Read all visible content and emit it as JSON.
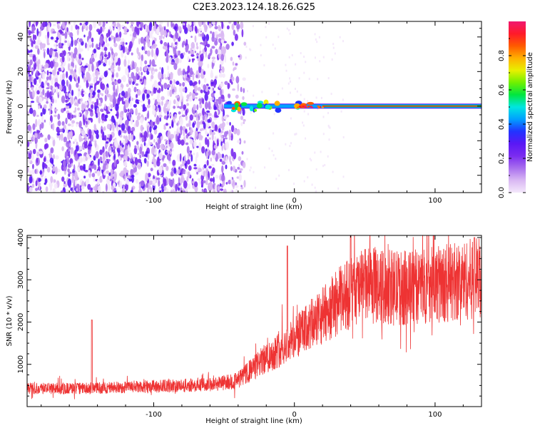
{
  "title": "C2E3.2023.124.18.26.G25",
  "chart_data": [
    {
      "type": "heatmap",
      "xlabel": "Height of straight line (km)",
      "ylabel": "Frequency (Hz)",
      "xlim": [
        -190,
        133
      ],
      "ylim": [
        -50,
        49
      ],
      "xticks": [
        -100,
        0,
        100
      ],
      "yticks": [
        -40,
        -20,
        0,
        20,
        40
      ],
      "xtick_labels": [
        "-100",
        "0",
        "100"
      ],
      "ytick_labels": [
        "-40",
        "-20",
        "0",
        "20",
        "40"
      ],
      "colorbar": {
        "label": "Normalized spectral amplitude",
        "range": [
          0.0,
          1.0
        ],
        "ticks": [
          0.0,
          0.2,
          0.4,
          0.6,
          0.8
        ],
        "tick_labels": [
          "0.0",
          "0.2",
          "0.4",
          "0.6",
          "0.8"
        ],
        "colors": [
          "#f4e8fb",
          "#d9b8f3",
          "#a970ee",
          "#7b2cf0",
          "#5a18f5",
          "#2233ff",
          "#00a0ff",
          "#00e6e0",
          "#00e640",
          "#70f000",
          "#e8f000",
          "#ffb000",
          "#ff5a00",
          "#ff1a2a",
          "#f01870"
        ]
      },
      "regions": [
        {
          "name": "noise",
          "x_range": [
            -190,
            -35
          ],
          "y_range": [
            -50,
            49
          ],
          "amplitude": [
            0.02,
            0.3
          ]
        },
        {
          "name": "signal",
          "x_range": [
            -50,
            133
          ],
          "frequency_hz": 0,
          "amplitude": [
            0.5,
            1.0
          ]
        }
      ]
    },
    {
      "type": "line",
      "xlabel": "Height of straight line (km)",
      "ylabel": "SNR (10 * v/v)",
      "xlim": [
        -190,
        133
      ],
      "ylim": [
        0,
        4050
      ],
      "xticks": [
        -100,
        0,
        100
      ],
      "yticks": [
        1000,
        2000,
        3000,
        4000
      ],
      "xtick_labels": [
        "-100",
        "0",
        "100"
      ],
      "ytick_labels": [
        "1000",
        "2000",
        "3000",
        "4000"
      ],
      "color": "#ee3333",
      "trend": [
        {
          "x": -190,
          "y": 430
        },
        {
          "x": -150,
          "y": 430
        },
        {
          "x": -100,
          "y": 480
        },
        {
          "x": -60,
          "y": 520
        },
        {
          "x": -40,
          "y": 620
        },
        {
          "x": -20,
          "y": 1150
        },
        {
          "x": 0,
          "y": 1600
        },
        {
          "x": 20,
          "y": 2150
        },
        {
          "x": 35,
          "y": 2600
        },
        {
          "x": 50,
          "y": 2850
        },
        {
          "x": 80,
          "y": 2800
        },
        {
          "x": 133,
          "y": 3050
        }
      ],
      "spikes": [
        {
          "x": -144,
          "y": 2050
        },
        {
          "x": -5,
          "y": 3800
        },
        {
          "x": 40,
          "y": 4050
        },
        {
          "x": 128,
          "y": 4000
        }
      ]
    }
  ]
}
